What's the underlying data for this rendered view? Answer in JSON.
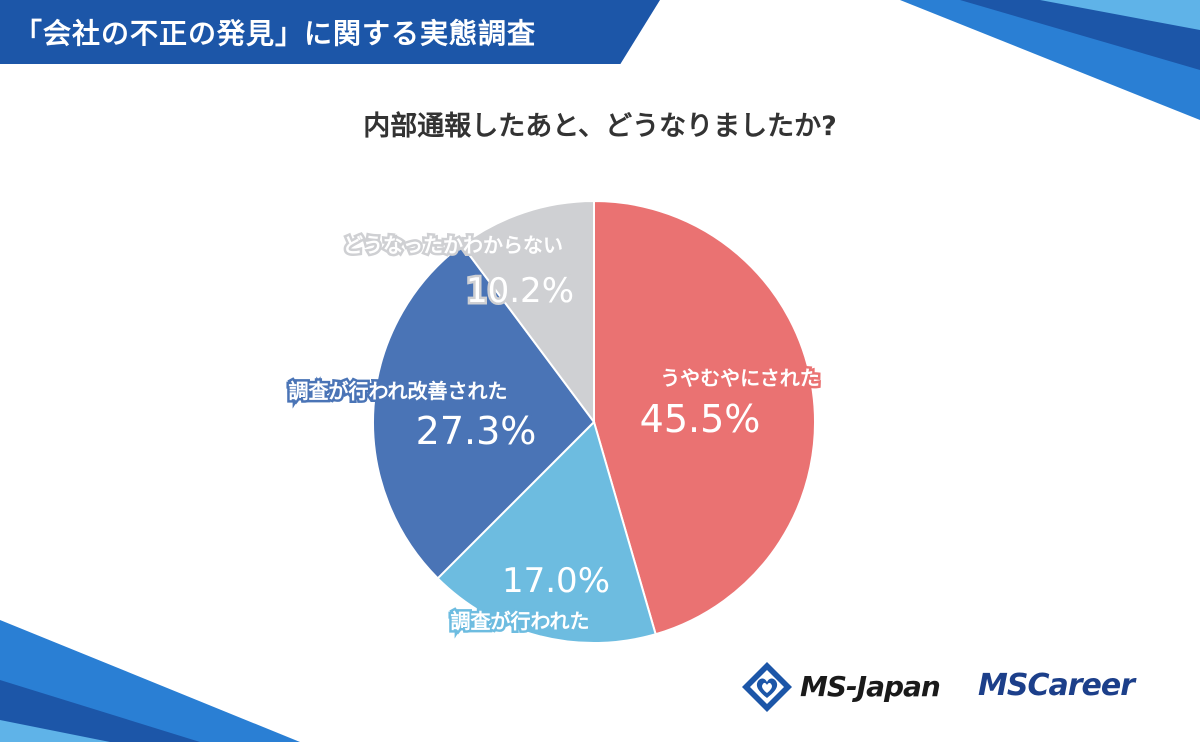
{
  "header": {
    "title": "「会社の不正の発見」に関する実態調査",
    "banner_color": "#1c56a8"
  },
  "chart_data": {
    "type": "pie",
    "title": "内部通報したあと、どうなりましたか?",
    "start_angle_deg": 0,
    "direction": "clockwise",
    "slices": [
      {
        "label": "うやむやにされた",
        "value": 45.5,
        "value_label": "45.5%",
        "color": "#ea7272",
        "label_color": "#ffffff",
        "pct_color": "#ffffff"
      },
      {
        "label": "調査が行われた",
        "value": 17.0,
        "value_label": "17.0%",
        "color": "#6dbce0",
        "label_color": "#ffffff",
        "pct_color": "#ffffff"
      },
      {
        "label": "調査が行われ改善された",
        "value": 27.3,
        "value_label": "27.3%",
        "color": "#4a74b6",
        "label_color": "#ffffff",
        "pct_color": "#ffffff"
      },
      {
        "label": "どうなったかわからない",
        "value": 10.2,
        "value_label": "10.2%",
        "color": "#cfd0d3",
        "label_color": "#ffffff",
        "pct_color": "#ffffff"
      }
    ]
  },
  "logos": {
    "ms_japan": "MS-Japan",
    "ms_career": "MSCareer",
    "ms_japan_icon": "diamond-heart-icon"
  }
}
